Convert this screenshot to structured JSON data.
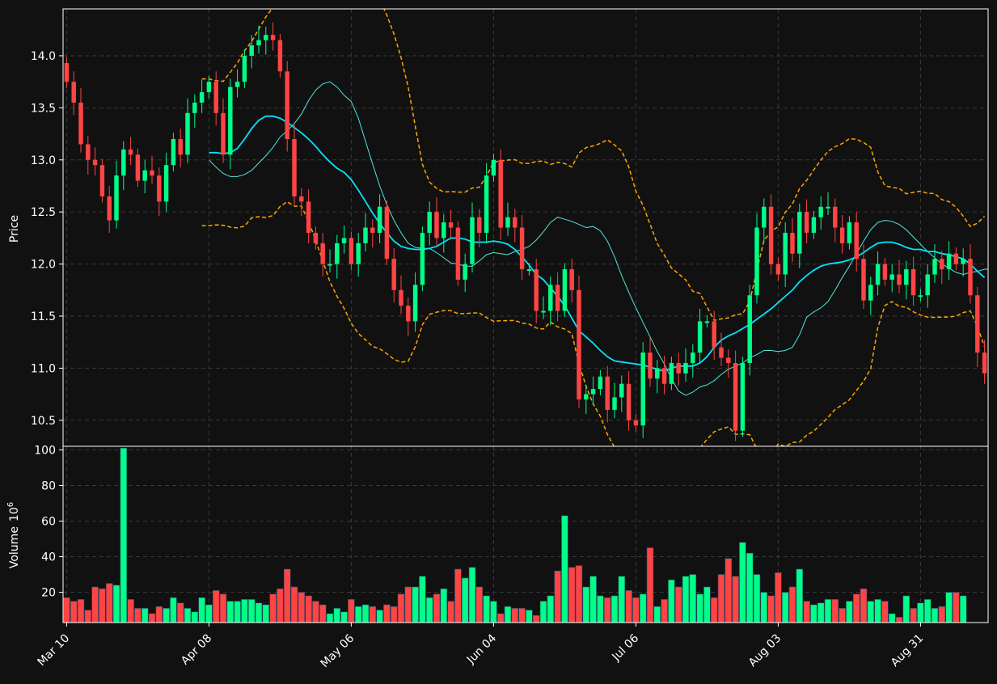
{
  "chart_data": [
    {
      "type": "candlestick",
      "title": "",
      "ylabel": "Price",
      "ylim": [
        10.25,
        14.45
      ],
      "y_ticks": [
        "10.5",
        "11.0",
        "11.5",
        "12.0",
        "12.5",
        "13.0",
        "13.5",
        "14.0"
      ],
      "x_ticks": [
        "Mar 10",
        "Apr 08",
        "May 06",
        "Jun 04",
        "Jul 06",
        "Aug 03",
        "Aug 31"
      ],
      "grid": true,
      "colors": {
        "up": "#00ff88",
        "down": "#ff4444",
        "ma_slow": "#00e5ff",
        "ma_fast": "#4de8e0",
        "band": "#ffa500",
        "background": "#111111",
        "grid": "#3a3a3a"
      },
      "closes": [
        13.75,
        13.55,
        13.15,
        13.0,
        12.95,
        12.65,
        12.42,
        12.85,
        13.1,
        13.05,
        12.8,
        12.9,
        12.85,
        12.6,
        12.95,
        13.2,
        13.05,
        13.45,
        13.55,
        13.65,
        13.75,
        13.45,
        13.05,
        13.7,
        13.75,
        14.0,
        14.1,
        14.15,
        14.2,
        14.15,
        13.85,
        13.2,
        12.65,
        12.6,
        12.3,
        12.2,
        12.0,
        12.0,
        12.2,
        12.25,
        12.0,
        12.2,
        12.35,
        12.3,
        12.55,
        12.05,
        11.75,
        11.6,
        11.45,
        11.8,
        12.3,
        12.5,
        12.25,
        12.4,
        12.35,
        11.85,
        12.0,
        12.45,
        12.3,
        12.85,
        13.0,
        12.35,
        12.45,
        12.35,
        11.95,
        11.95,
        11.55,
        11.55,
        11.8,
        11.55,
        11.95,
        11.75,
        10.7,
        10.75,
        10.8,
        10.92,
        10.6,
        10.72,
        10.85,
        10.5,
        10.45,
        11.15,
        10.9,
        11.0,
        10.85,
        11.05,
        10.95,
        11.05,
        11.15,
        11.45,
        11.45,
        11.2,
        11.1,
        11.05,
        10.4,
        11.05,
        11.7,
        12.35,
        12.55,
        12.0,
        11.9,
        12.3,
        12.1,
        12.5,
        12.3,
        12.45,
        12.55,
        12.55,
        12.35,
        12.2,
        12.4,
        12.05,
        11.65,
        11.8,
        12.0,
        11.85,
        11.9,
        11.8,
        11.95,
        11.7,
        11.7,
        11.9,
        12.05,
        11.95,
        12.1,
        12.0,
        12.05,
        11.7,
        11.15,
        10.95
      ],
      "ma_slow": [
        13.07,
        13.07,
        13.06,
        13.07,
        13.11,
        13.2,
        13.3,
        13.38,
        13.42,
        13.42,
        13.4,
        13.36,
        13.31,
        13.26,
        13.2,
        13.13,
        13.05,
        12.98,
        12.92,
        12.88,
        12.81,
        12.71,
        12.6,
        12.49,
        12.39,
        12.3,
        12.22,
        12.17,
        12.15,
        12.14,
        12.14,
        12.15,
        12.17,
        12.21,
        12.25,
        12.25,
        12.24,
        12.21,
        12.21,
        12.21,
        12.22,
        12.21,
        12.19,
        12.14,
        12.07,
        11.99,
        11.9,
        11.85,
        11.77,
        11.69,
        11.6,
        11.48,
        11.36,
        11.3,
        11.24,
        11.17,
        11.11,
        11.07,
        11.06,
        11.05,
        11.04,
        11.03,
        11.01,
        10.99,
        10.97,
        11.0,
        11.02,
        11.02,
        11.02,
        11.05,
        11.11,
        11.2,
        11.27,
        11.31,
        11.34,
        11.38,
        11.42,
        11.47,
        11.52,
        11.57,
        11.63,
        11.69,
        11.75,
        11.83,
        11.89,
        11.94,
        11.98,
        12.0,
        12.01,
        12.02,
        12.04,
        12.07,
        12.11,
        12.16,
        12.2,
        12.21,
        12.21,
        12.19,
        12.16,
        12.14,
        12.14,
        12.12,
        12.12,
        12.1,
        12.09,
        12.07,
        12.05,
        12.0,
        11.93,
        11.87
      ],
      "ma_fast": [
        13.0,
        12.93,
        12.87,
        12.84,
        12.84,
        12.86,
        12.9,
        12.97,
        13.04,
        13.12,
        13.22,
        13.28,
        13.35,
        13.44,
        13.57,
        13.67,
        13.73,
        13.75,
        13.7,
        13.62,
        13.56,
        13.4,
        13.18,
        12.96,
        12.75,
        12.57,
        12.42,
        12.3,
        12.2,
        12.16,
        12.15,
        12.15,
        12.11,
        12.06,
        12.01,
        12.0,
        11.98,
        11.98,
        12.03,
        12.09,
        12.11,
        12.1,
        12.09,
        12.12,
        12.14,
        12.17,
        12.23,
        12.31,
        12.4,
        12.45,
        12.43,
        12.41,
        12.38,
        12.35,
        12.36,
        12.32,
        12.22,
        12.07,
        11.89,
        11.73,
        11.58,
        11.44,
        11.3,
        11.16,
        11.04,
        10.9,
        10.78,
        10.74,
        10.77,
        10.82,
        10.84,
        10.88,
        10.94,
        10.99,
        11.02,
        11.05,
        11.1,
        11.13,
        11.17,
        11.17,
        11.16,
        11.17,
        11.2,
        11.32,
        11.49,
        11.54,
        11.58,
        11.64,
        11.75,
        11.87,
        11.98,
        12.1,
        12.22,
        12.33,
        12.4,
        12.42,
        12.41,
        12.38,
        12.33,
        12.26,
        12.19,
        12.12,
        12.06,
        12.0,
        11.96,
        11.92,
        11.9,
        11.92,
        11.93,
        11.95,
        11.95,
        11.94,
        11.89,
        11.79
      ]
    },
    {
      "type": "bar",
      "ylabel": "Volume",
      "yunit_exponent": "6",
      "ylim": [
        3,
        102
      ],
      "y_ticks": [
        "20",
        "40",
        "60",
        "80",
        "100"
      ],
      "values": [
        17,
        15,
        16,
        10,
        23,
        22,
        25,
        24,
        101,
        16,
        11,
        11,
        8,
        12,
        11,
        17,
        14,
        11,
        9,
        17,
        13,
        21,
        19,
        15,
        15,
        16,
        16,
        14,
        13,
        19,
        22,
        33,
        23,
        20,
        18,
        15,
        13,
        8,
        11,
        9,
        16,
        12,
        13,
        12,
        10,
        13,
        12,
        19,
        23,
        23,
        29,
        17,
        19,
        22,
        15,
        33,
        28,
        34,
        23,
        18,
        15,
        8,
        12,
        11,
        11,
        10,
        7,
        15,
        18,
        32,
        63,
        34,
        35,
        23,
        29,
        18,
        17,
        18,
        29,
        21,
        17,
        19,
        45,
        12,
        16,
        27,
        23,
        29,
        30,
        19,
        23,
        17,
        30,
        39,
        29,
        48,
        42,
        30,
        20,
        18,
        31,
        20,
        23,
        33,
        15,
        13,
        14,
        16,
        16,
        11,
        15,
        19,
        22,
        15,
        16,
        15,
        8,
        6,
        18,
        11,
        14,
        16,
        11,
        12,
        20,
        20,
        18
      ]
    }
  ]
}
